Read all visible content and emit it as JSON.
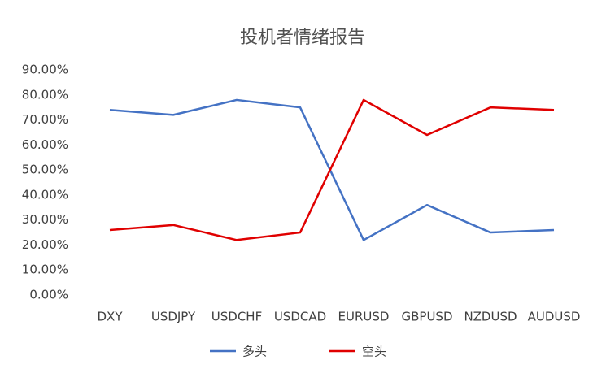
{
  "chart_data": {
    "type": "line",
    "title": "投机者情绪报告",
    "categories": [
      "DXY",
      "USDJPY",
      "USDCHF",
      "USDCAD",
      "EURUSD",
      "GBPUSD",
      "NZDUSD",
      "AUDUSD"
    ],
    "series": [
      {
        "name": "多头",
        "color": "#4472c4",
        "values": [
          74,
          72,
          78,
          75,
          22,
          36,
          25,
          26
        ]
      },
      {
        "name": "空头",
        "color": "#e00000",
        "values": [
          26,
          28,
          22,
          25,
          78,
          64,
          75,
          74
        ]
      }
    ],
    "ylim": [
      0,
      90
    ],
    "yticks": [
      {
        "value": 0,
        "label": "0.00%"
      },
      {
        "value": 10,
        "label": "10.00%"
      },
      {
        "value": 20,
        "label": "20.00%"
      },
      {
        "value": 30,
        "label": "30.00%"
      },
      {
        "value": 40,
        "label": "40.00%"
      },
      {
        "value": 50,
        "label": "50.00%"
      },
      {
        "value": 60,
        "label": "60.00%"
      },
      {
        "value": 70,
        "label": "70.00%"
      },
      {
        "value": 80,
        "label": "80.00%"
      },
      {
        "value": 90,
        "label": "90.00%"
      }
    ],
    "grid": false,
    "legend": "bottom"
  }
}
